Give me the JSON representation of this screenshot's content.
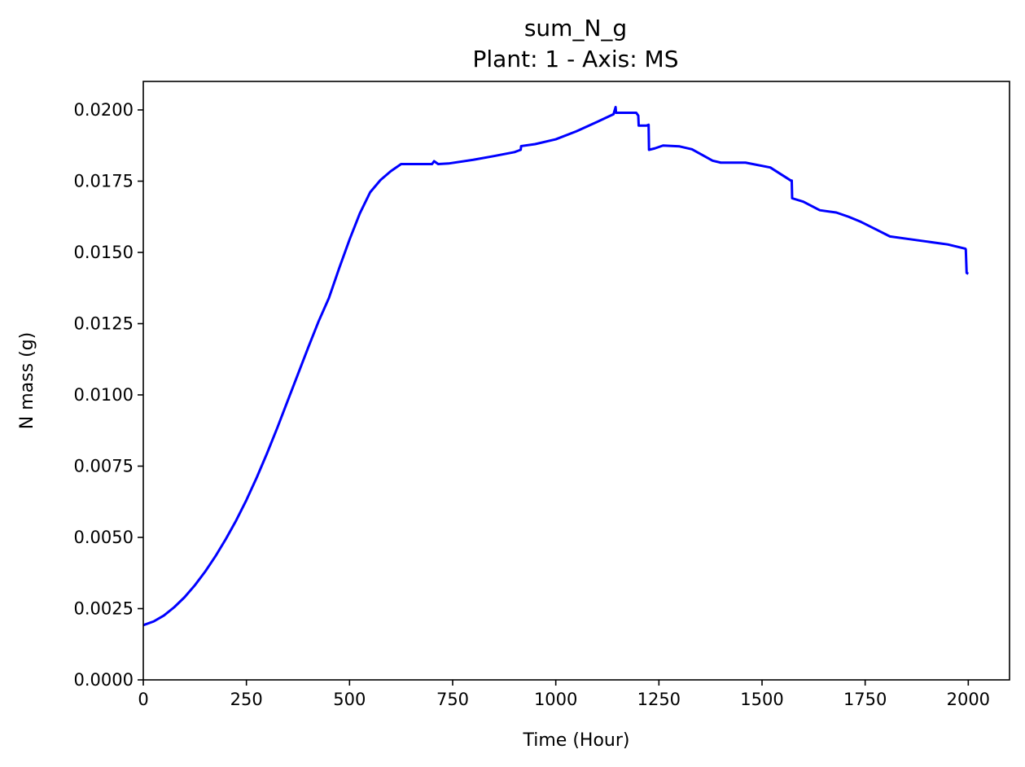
{
  "chart_data": {
    "type": "line",
    "title": "sum_N_g",
    "subtitle": "Plant: 1 - Axis: MS",
    "xlabel": "Time (Hour)",
    "ylabel": "N mass (g)",
    "xlim": [
      0,
      2100
    ],
    "ylim": [
      0,
      0.021
    ],
    "xticks": [
      0,
      250,
      500,
      750,
      1000,
      1250,
      1500,
      1750,
      2000
    ],
    "xtick_labels": [
      "0",
      "250",
      "500",
      "750",
      "1000",
      "1250",
      "1500",
      "1750",
      "2000"
    ],
    "yticks": [
      0,
      0.0025,
      0.005,
      0.0075,
      0.01,
      0.0125,
      0.015,
      0.0175,
      0.02
    ],
    "ytick_labels": [
      "0.0000",
      "0.0025",
      "0.0050",
      "0.0075",
      "0.0100",
      "0.0125",
      "0.0150",
      "0.0175",
      "0.0200"
    ],
    "grid": false,
    "series": [
      {
        "color": "#0000ff",
        "x": [
          0,
          25,
          50,
          75,
          100,
          125,
          150,
          175,
          200,
          225,
          250,
          275,
          300,
          325,
          350,
          375,
          400,
          425,
          450,
          475,
          500,
          525,
          550,
          575,
          600,
          625,
          650,
          675,
          700,
          705,
          715,
          740,
          800,
          850,
          900,
          915,
          916,
          950,
          1000,
          1050,
          1100,
          1140,
          1145,
          1146,
          1175,
          1195,
          1200,
          1201,
          1220,
          1225,
          1226,
          1240,
          1260,
          1300,
          1330,
          1360,
          1380,
          1400,
          1460,
          1520,
          1570,
          1572,
          1573,
          1600,
          1640,
          1680,
          1710,
          1740,
          1780,
          1810,
          1850,
          1900,
          1950,
          1993,
          1994,
          1996,
          2000
        ],
        "y": [
          0.00192,
          0.00205,
          0.00226,
          0.00255,
          0.0029,
          0.00332,
          0.0038,
          0.00434,
          0.00494,
          0.00559,
          0.00631,
          0.0071,
          0.00795,
          0.00885,
          0.00979,
          0.01073,
          0.01167,
          0.01258,
          0.0134,
          0.01445,
          0.01545,
          0.01637,
          0.01711,
          0.01754,
          0.01785,
          0.0181,
          0.0181,
          0.0181,
          0.0181,
          0.0182,
          0.0181,
          0.01812,
          0.01825,
          0.01838,
          0.01852,
          0.0186,
          0.01873,
          0.0188,
          0.01897,
          0.01925,
          0.01958,
          0.01985,
          0.0201,
          0.0199,
          0.0199,
          0.0199,
          0.0198,
          0.01945,
          0.01945,
          0.01948,
          0.0186,
          0.01865,
          0.01875,
          0.01872,
          0.01862,
          0.01838,
          0.01822,
          0.01815,
          0.01815,
          0.01798,
          0.01752,
          0.01752,
          0.0169,
          0.01678,
          0.01648,
          0.0164,
          0.01625,
          0.01607,
          0.01578,
          0.01556,
          0.01548,
          0.01538,
          0.01528,
          0.01513,
          0.0151,
          0.01428,
          0.01425
        ]
      }
    ]
  }
}
